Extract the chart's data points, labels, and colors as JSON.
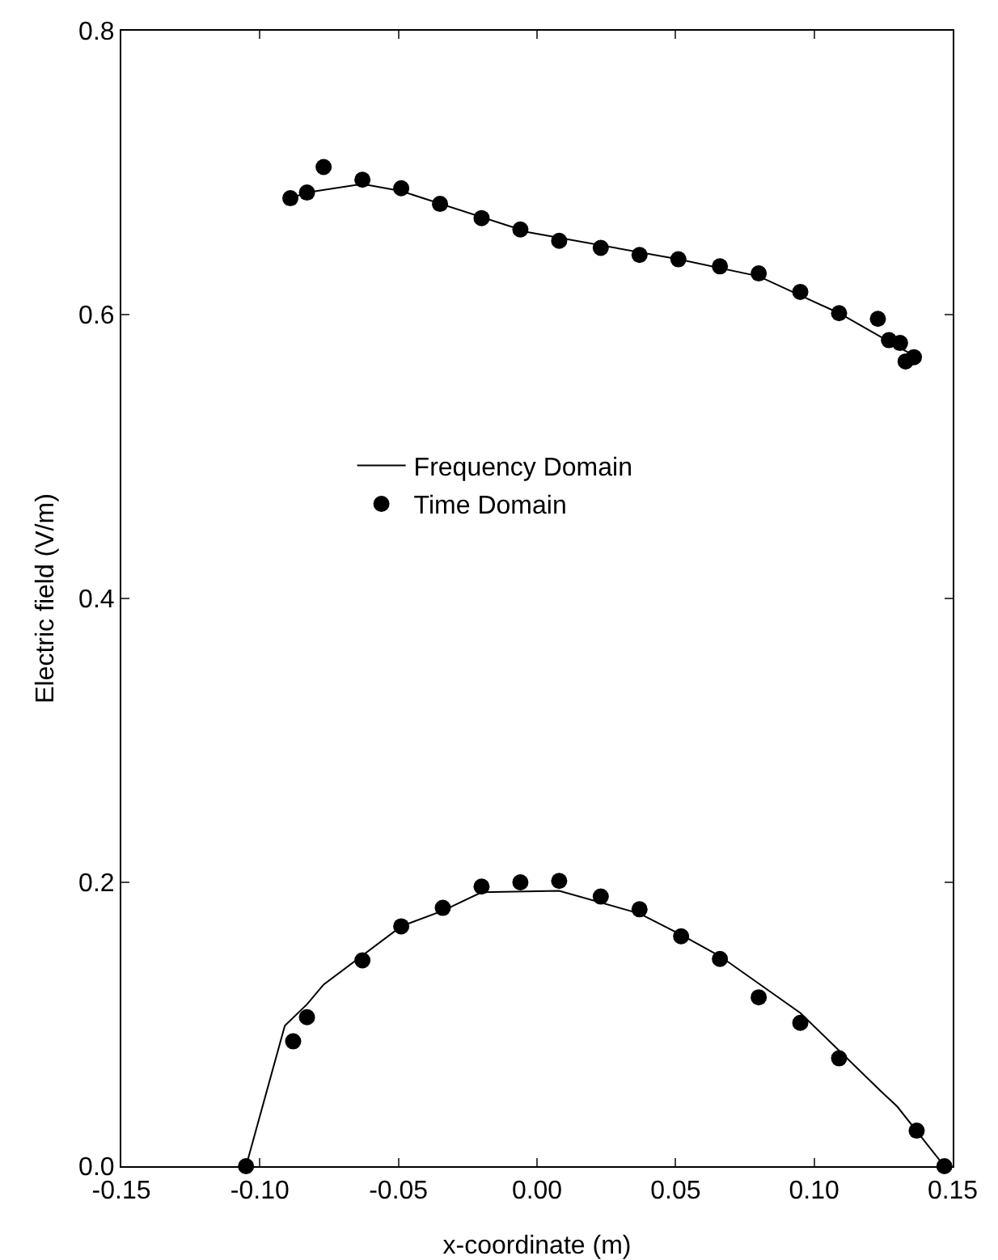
{
  "chart_data": {
    "type": "line",
    "xlabel": "x-coordinate (m)",
    "ylabel": "Electric field (V/m)",
    "xlim": [
      -0.15,
      0.15
    ],
    "ylim": [
      0,
      0.8
    ],
    "xticks": [
      {
        "value": -0.15,
        "label": "-0.15"
      },
      {
        "value": -0.1,
        "label": "-0.10"
      },
      {
        "value": -0.05,
        "label": "-0.05"
      },
      {
        "value": 0,
        "label": "0.00"
      },
      {
        "value": 0.05,
        "label": "0.05"
      },
      {
        "value": 0.1,
        "label": "0.10"
      },
      {
        "value": 0.15,
        "label": "0.15"
      }
    ],
    "yticks": [
      {
        "value": 0,
        "label": "0.0"
      },
      {
        "value": 0.2,
        "label": "0.2"
      },
      {
        "value": 0.4,
        "label": "0.4"
      },
      {
        "value": 0.6,
        "label": "0.6"
      },
      {
        "value": 0.8,
        "label": "0.8"
      }
    ],
    "grid": false,
    "legend": "center",
    "line_style": "solid",
    "series": [
      {
        "name": "Frequency Domain",
        "marker": "none",
        "color": "#000000",
        "x": [
          -0.089,
          -0.083,
          -0.063,
          -0.049,
          -0.003,
          0.051,
          0.08,
          0.109,
          0.136,
          null,
          -0.105,
          -0.091,
          -0.083,
          -0.077,
          -0.049,
          -0.034,
          -0.02,
          0.008,
          0.037,
          0.052,
          0.066,
          0.095,
          0.124,
          0.13,
          0.147
        ],
        "values": [
          0.682,
          0.686,
          0.692,
          0.687,
          0.658,
          0.639,
          0.627,
          0.601,
          0.571,
          null,
          0,
          0.099,
          0.114,
          0.128,
          0.169,
          0.18,
          0.193,
          0.194,
          0.178,
          0.163,
          0.148,
          0.108,
          0.053,
          0.042,
          0
        ]
      },
      {
        "name": "Time Domain",
        "type": "scatter",
        "marker": "circle",
        "color": "#000000",
        "x": [
          -0.089,
          -0.083,
          -0.077,
          -0.063,
          -0.049,
          -0.035,
          -0.02,
          -0.006,
          0.008,
          0.023,
          0.037,
          0.051,
          0.066,
          0.08,
          0.095,
          0.109,
          0.123,
          0.127,
          0.131,
          0.133,
          0.136,
          -0.105,
          -0.088,
          -0.083,
          -0.063,
          -0.049,
          -0.034,
          -0.02,
          -0.006,
          0.008,
          0.023,
          0.037,
          0.052,
          0.066,
          0.08,
          0.095,
          0.109,
          0.137,
          0.147
        ],
        "values": [
          0.682,
          0.686,
          0.704,
          0.695,
          0.689,
          0.678,
          0.668,
          0.66,
          0.652,
          0.647,
          0.642,
          0.639,
          0.634,
          0.629,
          0.616,
          0.601,
          0.597,
          0.582,
          0.58,
          0.567,
          0.57,
          0,
          0.088,
          0.105,
          0.145,
          0.169,
          0.182,
          0.197,
          0.2,
          0.201,
          0.19,
          0.181,
          0.162,
          0.146,
          0.119,
          0.101,
          0.076,
          0.025,
          0
        ]
      }
    ]
  }
}
